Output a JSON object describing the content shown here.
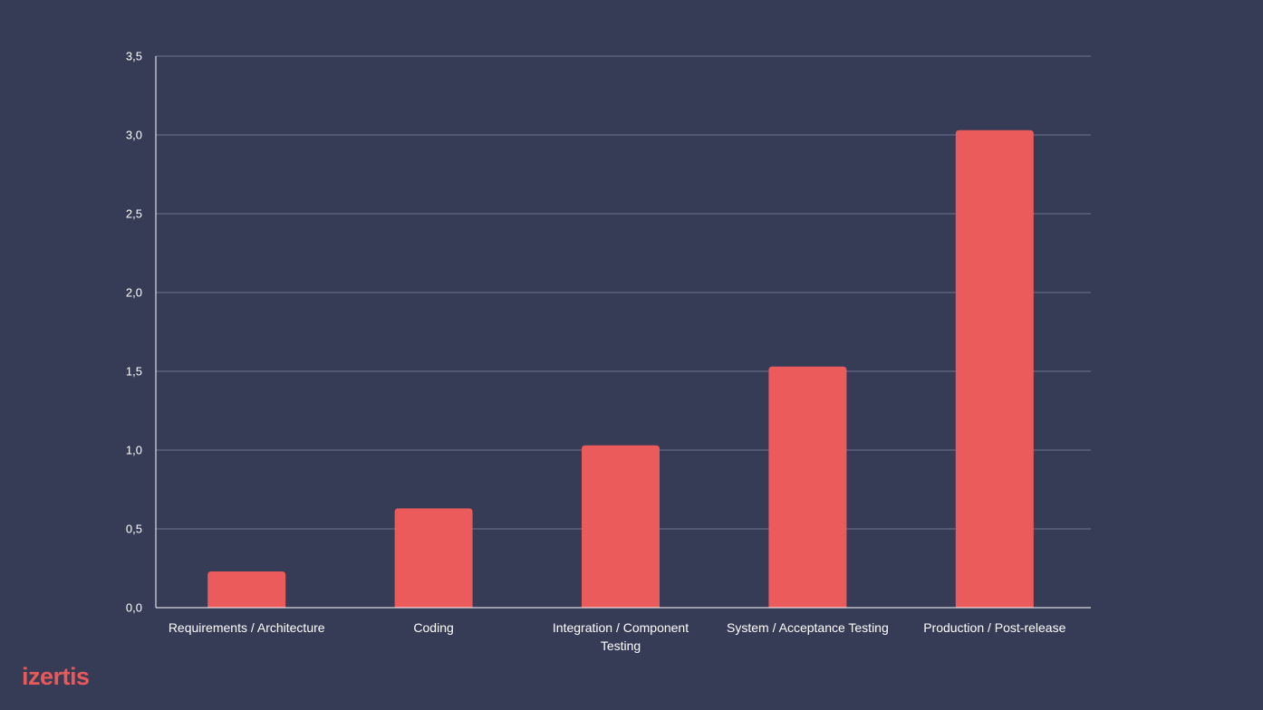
{
  "brand": {
    "logo_text": "izertis",
    "logo_color": "#e85a5a"
  },
  "colors": {
    "background": "#363b56",
    "bar": "#eb5b5b",
    "grid": "#6e7390",
    "axis": "#ffffff",
    "text": "#ffffff"
  },
  "chart_data": {
    "type": "bar",
    "title": "",
    "xlabel": "",
    "ylabel": "",
    "ylim": [
      0,
      3.5
    ],
    "yticks": [
      0,
      0.5,
      1.0,
      1.5,
      2.0,
      2.5,
      3.0,
      3.5
    ],
    "ytick_labels": [
      "0,0",
      "0,5",
      "1,0",
      "1,5",
      "2,0",
      "2,5",
      "3,0",
      "3,5"
    ],
    "grid": true,
    "categories": [
      [
        "Requirements / Architecture"
      ],
      [
        "Coding"
      ],
      [
        "Integration / Component",
        "Testing"
      ],
      [
        "System / Acceptance Testing"
      ],
      [
        "Production / Post-release"
      ]
    ],
    "values": [
      0.23,
      0.63,
      1.03,
      1.53,
      3.03
    ]
  }
}
